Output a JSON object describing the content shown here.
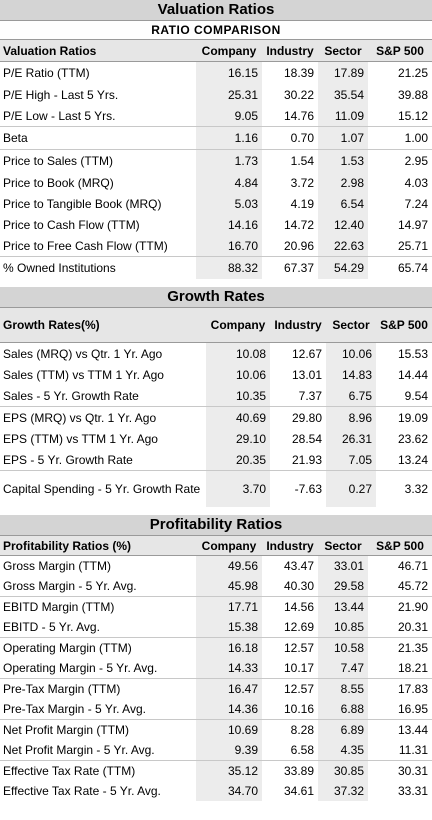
{
  "valuation": {
    "title": "Valuation Ratios",
    "subtitle": "RATIO COMPARISON",
    "columns": [
      "Valuation Ratios",
      "Company",
      "Industry",
      "Sector",
      "S&P 500"
    ],
    "rows": [
      [
        "P/E Ratio (TTM)",
        "16.15",
        "18.39",
        "17.89",
        "21.25"
      ],
      [
        "P/E High - Last 5 Yrs.",
        "25.31",
        "30.22",
        "35.54",
        "39.88"
      ],
      [
        "P/E Low - Last 5 Yrs.",
        "9.05",
        "14.76",
        "11.09",
        "15.12"
      ],
      [
        "Beta",
        "1.16",
        "0.70",
        "1.07",
        "1.00"
      ],
      [
        "Price to Sales (TTM)",
        "1.73",
        "1.54",
        "1.53",
        "2.95"
      ],
      [
        "Price to Book (MRQ)",
        "4.84",
        "3.72",
        "2.98",
        "4.03"
      ],
      [
        "Price to Tangible Book (MRQ)",
        "5.03",
        "4.19",
        "6.54",
        "7.24"
      ],
      [
        "Price to Cash Flow (TTM)",
        "14.16",
        "14.72",
        "12.40",
        "14.97"
      ],
      [
        "Price to Free Cash Flow (TTM)",
        "16.70",
        "20.96",
        "22.63",
        "25.71"
      ],
      [
        "% Owned Institutions",
        "88.32",
        "67.37",
        "54.29",
        "65.74"
      ]
    ]
  },
  "growth": {
    "title": "Growth Rates",
    "columns": [
      "Growth Rates(%)",
      "Company",
      "Industry",
      "Sector",
      "S&P 500"
    ],
    "rows": [
      [
        "Sales (MRQ) vs Qtr. 1 Yr. Ago",
        "10.08",
        "12.67",
        "10.06",
        "15.53"
      ],
      [
        "Sales (TTM) vs TTM 1 Yr. Ago",
        "10.06",
        "13.01",
        "14.83",
        "14.44"
      ],
      [
        "Sales - 5 Yr. Growth Rate",
        "10.35",
        "7.37",
        "6.75",
        "9.54"
      ],
      [
        "EPS (MRQ) vs Qtr. 1 Yr. Ago",
        "40.69",
        "29.80",
        "8.96",
        "19.09"
      ],
      [
        "EPS (TTM) vs TTM 1 Yr. Ago",
        "29.10",
        "28.54",
        "26.31",
        "23.62"
      ],
      [
        "EPS - 5 Yr. Growth Rate",
        "20.35",
        "21.93",
        "7.05",
        "13.24"
      ],
      [
        "Capital Spending - 5 Yr. Growth Rate",
        "3.70",
        "-7.63",
        "0.27",
        "3.32"
      ]
    ]
  },
  "profitability": {
    "title": "Profitability Ratios",
    "columns": [
      "Profitability Ratios (%)",
      "Company",
      "Industry",
      "Sector",
      "S&P 500"
    ],
    "rows": [
      [
        "Gross Margin (TTM)",
        "49.56",
        "43.47",
        "33.01",
        "46.71"
      ],
      [
        "Gross Margin - 5 Yr. Avg.",
        "45.98",
        "40.30",
        "29.58",
        "45.72"
      ],
      [
        "EBITD Margin (TTM)",
        "17.71",
        "14.56",
        "13.44",
        "21.90"
      ],
      [
        "EBITD - 5 Yr. Avg.",
        "15.38",
        "12.69",
        "10.85",
        "20.31"
      ],
      [
        "Operating Margin (TTM)",
        "16.18",
        "12.57",
        "10.58",
        "21.35"
      ],
      [
        "Operating Margin - 5 Yr. Avg.",
        "14.33",
        "10.17",
        "7.47",
        "18.21"
      ],
      [
        "Pre-Tax Margin (TTM)",
        "16.47",
        "12.57",
        "8.55",
        "17.83"
      ],
      [
        "Pre-Tax Margin - 5 Yr. Avg.",
        "14.36",
        "10.16",
        "6.88",
        "16.95"
      ],
      [
        "Net Profit Margin (TTM)",
        "10.69",
        "8.28",
        "6.89",
        "13.44"
      ],
      [
        "Net Profit Margin - 5 Yr. Avg.",
        "9.39",
        "6.58",
        "4.35",
        "11.31"
      ],
      [
        "Effective Tax Rate (TTM)",
        "35.12",
        "33.89",
        "30.85",
        "30.31"
      ],
      [
        "Effective Tax Rate - 5 Yr. Avg.",
        "34.70",
        "34.61",
        "37.32",
        "33.31"
      ]
    ]
  }
}
